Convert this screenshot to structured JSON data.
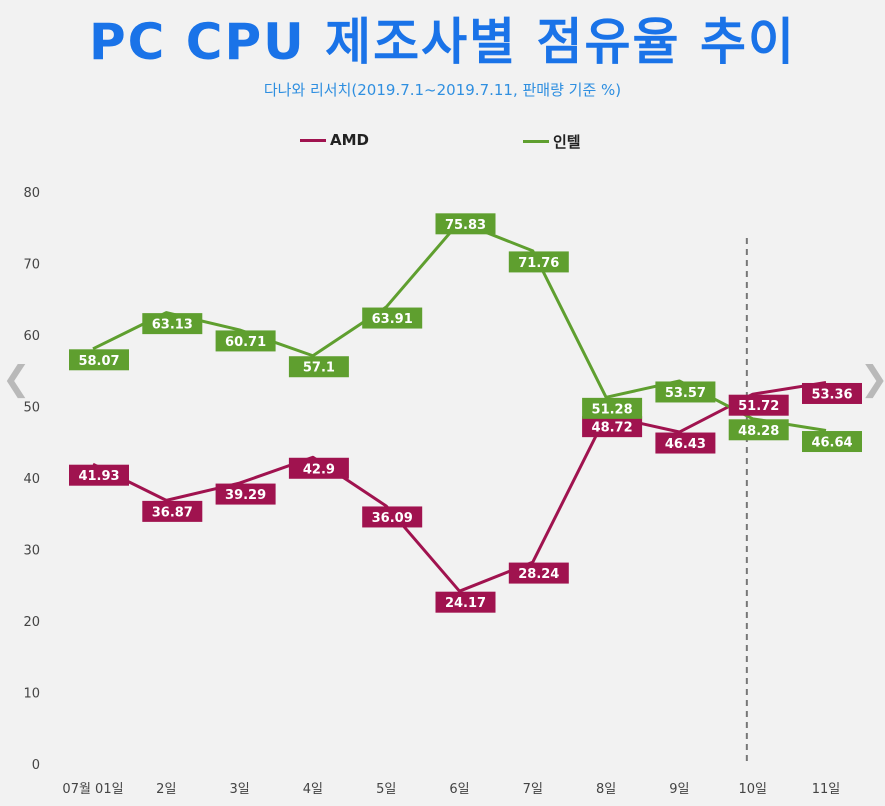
{
  "title": "PC CPU 제조사별 점유율 추이",
  "subtitle": "다나와 리서치(2019.7.1~2019.7.11,  판매량 기준 %)",
  "nav": {
    "prev_icon": "chevron-left-icon",
    "next_icon": "chevron-right-icon"
  },
  "chart_data": {
    "type": "line",
    "categories": [
      "07월 01일",
      "2일",
      "3일",
      "4일",
      "5일",
      "6일",
      "7일",
      "8일",
      "9일",
      "10일",
      "11일"
    ],
    "series": [
      {
        "name": "AMD",
        "color": "#a0134f",
        "values": [
          41.93,
          36.87,
          39.29,
          42.9,
          36.09,
          24.17,
          28.24,
          48.72,
          46.43,
          51.72,
          53.36
        ]
      },
      {
        "name": "인텔",
        "color": "#5f9f2f",
        "values": [
          58.07,
          63.13,
          60.71,
          57.1,
          63.91,
          75.83,
          71.76,
          51.28,
          53.57,
          48.28,
          46.64
        ]
      }
    ],
    "y_ticks": [
      0,
      10,
      20,
      30,
      40,
      50,
      60,
      70,
      80
    ],
    "ylim": [
      0,
      80
    ],
    "grid": false,
    "legend_position": "top-center",
    "divider_after_category": "9일"
  }
}
